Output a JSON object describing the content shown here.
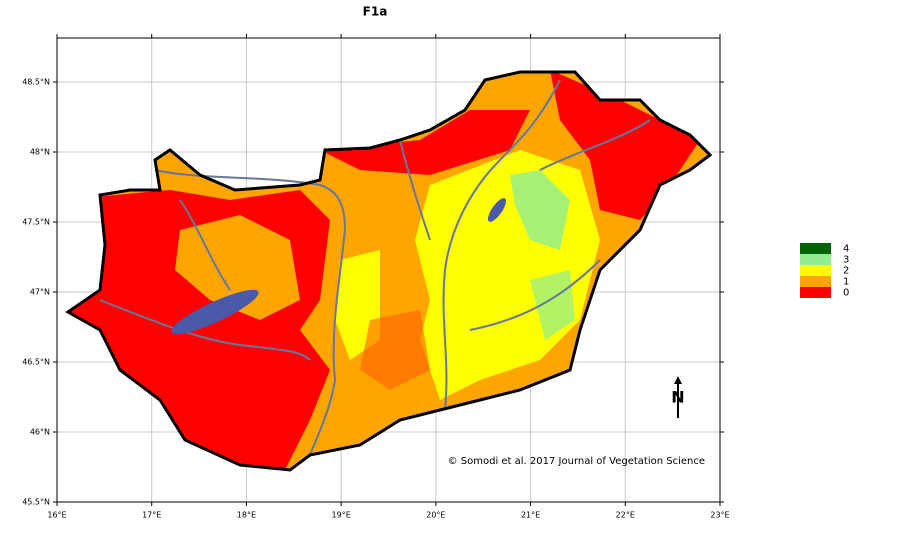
{
  "map": {
    "title": "F1a",
    "xticks": [
      {
        "value": 16,
        "label": "16°E"
      },
      {
        "value": 17,
        "label": "17°E"
      },
      {
        "value": 18,
        "label": "18°E"
      },
      {
        "value": 19,
        "label": "19°E"
      },
      {
        "value": 20,
        "label": "20°E"
      },
      {
        "value": 21,
        "label": "21°E"
      },
      {
        "value": 22,
        "label": "22°E"
      },
      {
        "value": 23,
        "label": "23°E"
      }
    ],
    "yticks": [
      {
        "value": 45.5,
        "label": "45.5°N"
      },
      {
        "value": 46,
        "label": "46°N"
      },
      {
        "value": 46.5,
        "label": "46.5°N"
      },
      {
        "value": 47,
        "label": "47°N"
      },
      {
        "value": 47.5,
        "label": "47.5°N"
      },
      {
        "value": 48,
        "label": "48°N"
      },
      {
        "value": 48.5,
        "label": "48.5°N"
      }
    ],
    "grid": true,
    "legend": [
      {
        "label": "4",
        "color": "#006400"
      },
      {
        "label": "3",
        "color": "#90ee90"
      },
      {
        "label": "2",
        "color": "#ffff00"
      },
      {
        "label": "1",
        "color": "#ffa500"
      },
      {
        "label": "0",
        "color": "#ff0000"
      }
    ],
    "north_label": "N",
    "credit": "© Somodi et al. 2017 Journal of Vegetation Science"
  }
}
